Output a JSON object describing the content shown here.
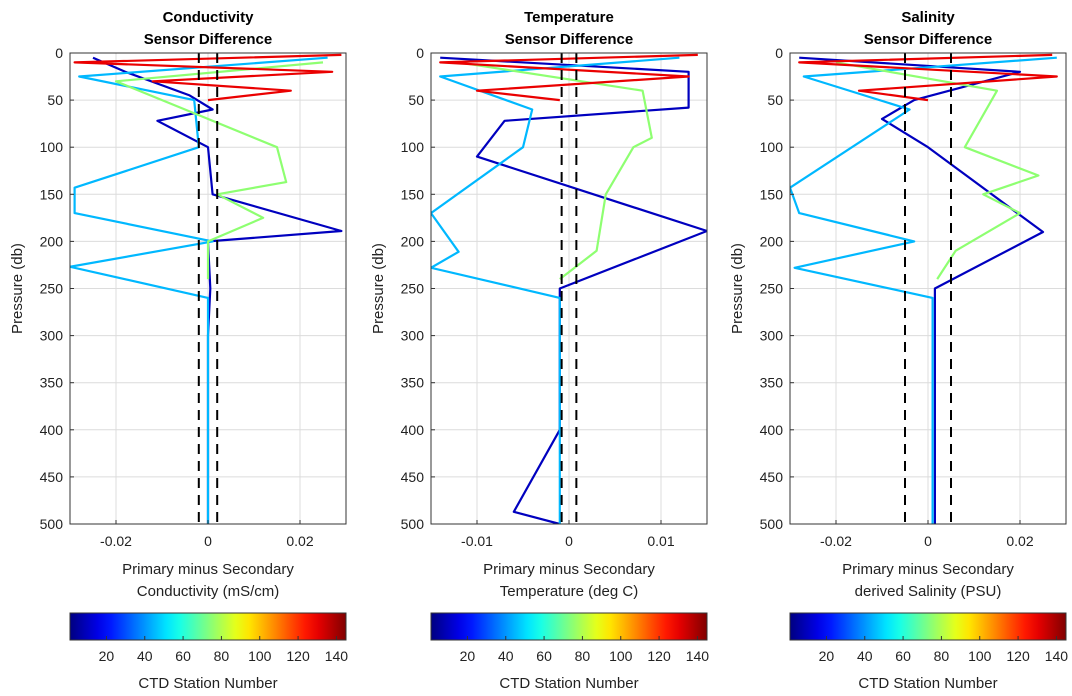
{
  "chart_data": [
    {
      "type": "line",
      "title": [
        "Conductivity",
        "Sensor Difference"
      ],
      "xlabel": [
        "Primary minus Secondary",
        "Conductivity (mS/cm)"
      ],
      "ylabel": "Pressure (db)",
      "xlim": [
        -0.03,
        0.03
      ],
      "ylim": [
        0,
        500
      ],
      "y_reversed": true,
      "grid": true,
      "xticks": [
        -0.02,
        0,
        0.02
      ],
      "xtick_labels": [
        "-0.02",
        "0",
        "0.02"
      ],
      "yticks": [
        0,
        50,
        100,
        150,
        200,
        250,
        300,
        350,
        400,
        450,
        500
      ],
      "ref_lines_x": [
        -0.002,
        0.002
      ],
      "color_axis": "CTD Station Number",
      "stations_range": [
        1,
        145
      ],
      "series": [
        {
          "station": 10,
          "pressure": [
            5,
            20,
            45,
            60,
            72,
            100,
            150,
            189,
            200,
            250,
            300,
            350,
            400,
            450,
            500
          ],
          "x": [
            -0.025,
            -0.018,
            -0.004,
            0.001,
            -0.011,
            0.0,
            0.001,
            0.029,
            0.0,
            0.0005,
            0.0,
            0.0,
            0.0,
            0.0,
            0.0
          ]
        },
        {
          "station": 45,
          "pressure": [
            5,
            25,
            50,
            100,
            143,
            170,
            200,
            227,
            260,
            300,
            400,
            500
          ],
          "x": [
            0.026,
            -0.028,
            -0.003,
            -0.002,
            -0.029,
            -0.029,
            0.001,
            -0.03,
            0.0,
            0.0,
            0.0,
            0.0
          ]
        },
        {
          "station": 75,
          "pressure": [
            10,
            30,
            60,
            100,
            137,
            150,
            175,
            200,
            240
          ],
          "x": [
            0.025,
            -0.02,
            -0.005,
            0.015,
            0.017,
            0.002,
            0.012,
            0.0,
            0.0
          ]
        },
        {
          "station": 130,
          "pressure": [
            2,
            10,
            20,
            30,
            40,
            50
          ],
          "x": [
            0.029,
            -0.029,
            0.027,
            -0.012,
            0.018,
            0.0
          ]
        }
      ]
    },
    {
      "type": "line",
      "title": [
        "Temperature",
        "Sensor Difference"
      ],
      "xlabel": [
        "Primary minus Secondary",
        "Temperature (deg C)"
      ],
      "ylabel": "Pressure (db)",
      "xlim": [
        -0.015,
        0.015
      ],
      "ylim": [
        0,
        500
      ],
      "y_reversed": true,
      "grid": true,
      "xticks": [
        -0.01,
        0,
        0.01
      ],
      "xtick_labels": [
        "-0.01",
        "0",
        "0.01"
      ],
      "yticks": [
        0,
        50,
        100,
        150,
        200,
        250,
        300,
        350,
        400,
        450,
        500
      ],
      "ref_lines_x": [
        -0.0008,
        0.0008
      ],
      "color_axis": "CTD Station Number",
      "stations_range": [
        1,
        145
      ],
      "series": [
        {
          "station": 10,
          "pressure": [
            5,
            20,
            58,
            72,
            110,
            189,
            250,
            300,
            400,
            487,
            500
          ],
          "x": [
            -0.014,
            0.013,
            0.013,
            -0.007,
            -0.01,
            0.015,
            -0.001,
            -0.001,
            -0.001,
            -0.006,
            -0.001
          ]
        },
        {
          "station": 45,
          "pressure": [
            5,
            25,
            60,
            100,
            170,
            211,
            228,
            260,
            400,
            500
          ],
          "x": [
            0.012,
            -0.014,
            -0.004,
            -0.005,
            -0.015,
            -0.012,
            -0.015,
            -0.001,
            -0.001,
            -0.001
          ]
        },
        {
          "station": 75,
          "pressure": [
            10,
            40,
            90,
            100,
            150,
            210,
            240
          ],
          "x": [
            -0.012,
            0.008,
            0.009,
            0.007,
            0.004,
            0.003,
            -0.001
          ]
        },
        {
          "station": 130,
          "pressure": [
            2,
            10,
            25,
            40,
            50
          ],
          "x": [
            0.014,
            -0.014,
            0.013,
            -0.01,
            -0.001
          ]
        }
      ]
    },
    {
      "type": "line",
      "title": [
        "Salinity",
        "Sensor Difference"
      ],
      "xlabel": [
        "Primary minus Secondary",
        "derived Salinity (PSU)"
      ],
      "ylabel": "Pressure (db)",
      "xlim": [
        -0.03,
        0.03
      ],
      "ylim": [
        0,
        500
      ],
      "y_reversed": true,
      "grid": true,
      "xticks": [
        -0.02,
        0,
        0.02
      ],
      "xtick_labels": [
        "-0.02",
        "0",
        "0.02"
      ],
      "yticks": [
        0,
        50,
        100,
        150,
        200,
        250,
        300,
        350,
        400,
        450,
        500
      ],
      "ref_lines_x": [
        -0.005,
        0.005
      ],
      "color_axis": "CTD Station Number",
      "stations_range": [
        1,
        145
      ],
      "series": [
        {
          "station": 10,
          "pressure": [
            5,
            20,
            50,
            70,
            100,
            190,
            250,
            300,
            400,
            500
          ],
          "x": [
            -0.028,
            0.02,
            -0.003,
            -0.01,
            0.0,
            0.025,
            0.0015,
            0.0015,
            0.0015,
            0.0015
          ]
        },
        {
          "station": 45,
          "pressure": [
            5,
            25,
            60,
            143,
            170,
            200,
            228,
            260,
            400,
            500
          ],
          "x": [
            0.028,
            -0.027,
            -0.004,
            -0.03,
            -0.028,
            -0.003,
            -0.029,
            0.001,
            0.001,
            0.001
          ]
        },
        {
          "station": 75,
          "pressure": [
            10,
            40,
            100,
            130,
            150,
            170,
            210,
            240
          ],
          "x": [
            -0.02,
            0.015,
            0.008,
            0.024,
            0.012,
            0.02,
            0.006,
            0.002
          ]
        },
        {
          "station": 130,
          "pressure": [
            2,
            10,
            25,
            40,
            50
          ],
          "x": [
            0.027,
            -0.028,
            0.028,
            -0.015,
            0.0
          ]
        }
      ]
    }
  ],
  "colorbar": {
    "label": "CTD Station Number",
    "range": [
      1,
      145
    ],
    "ticks": [
      20,
      40,
      60,
      80,
      100,
      120,
      140
    ],
    "colormap": "jet"
  }
}
